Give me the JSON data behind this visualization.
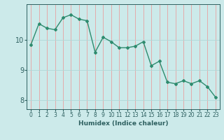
{
  "x": [
    0,
    1,
    2,
    3,
    4,
    5,
    6,
    7,
    8,
    9,
    10,
    11,
    12,
    13,
    14,
    15,
    16,
    17,
    18,
    19,
    20,
    21,
    22,
    23
  ],
  "y": [
    9.85,
    10.55,
    10.4,
    10.35,
    10.75,
    10.85,
    10.7,
    10.65,
    9.6,
    10.1,
    9.95,
    9.75,
    9.75,
    9.8,
    9.95,
    9.15,
    9.3,
    8.6,
    8.55,
    8.65,
    8.55,
    8.65,
    8.45,
    8.1
  ],
  "line_color": "#2e8b6e",
  "marker": "D",
  "markersize": 2.0,
  "linewidth": 1.0,
  "bg_color": "#cceaea",
  "grid_color_v": "#e8a0a0",
  "grid_color_h": "#b0d8d8",
  "xlabel": "Humidex (Indice chaleur)",
  "xlabel_fontsize": 6.5,
  "tick_color": "#2e6060",
  "ylim": [
    7.7,
    11.2
  ],
  "yticks": [
    8,
    9,
    10
  ],
  "xticks": [
    0,
    1,
    2,
    3,
    4,
    5,
    6,
    7,
    8,
    9,
    10,
    11,
    12,
    13,
    14,
    15,
    16,
    17,
    18,
    19,
    20,
    21,
    22,
    23
  ],
  "tick_fontsize": 5.5,
  "ytick_fontsize": 7.0
}
